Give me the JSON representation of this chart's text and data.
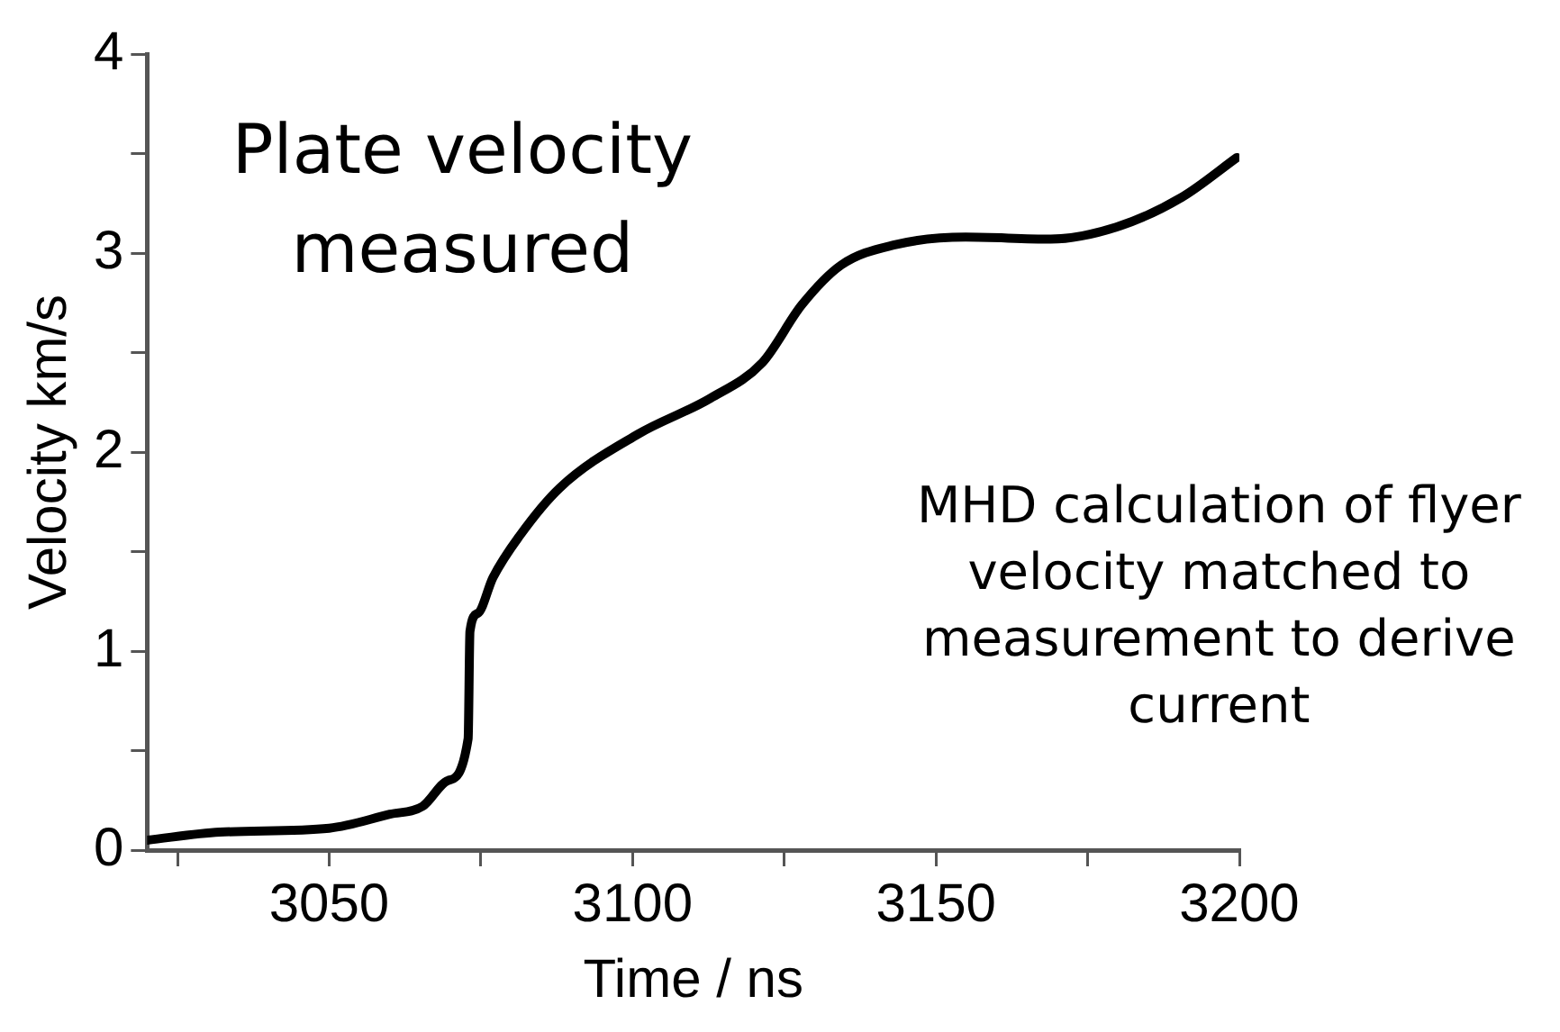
{
  "chart_data": {
    "type": "line",
    "xlabel": "Time / ns",
    "ylabel": "Velocity km/s",
    "x": [
      3020,
      3032,
      3050,
      3060,
      3065.4,
      3069.6,
      3072.9,
      3073.2,
      3074.5,
      3077,
      3081.4,
      3088,
      3100.9,
      3112.8,
      3121.4,
      3127.9,
      3134.4,
      3143,
      3154.9,
      3168.9,
      3179.7,
      3190.5,
      3199.6
    ],
    "series": [
      {
        "color": "#000000",
        "values": [
          0.05,
          0.09,
          0.11,
          0.18,
          0.22,
          0.35,
          0.56,
          1.1,
          1.19,
          1.37,
          1.58,
          1.82,
          2.09,
          2.27,
          2.45,
          2.74,
          2.94,
          3.04,
          3.08,
          3.07,
          3.13,
          3.28,
          3.48
        ]
      }
    ],
    "xlim": [
      3020,
      3200
    ],
    "xticks": [
      {
        "value": 3025,
        "label": null
      },
      3050,
      {
        "value": 3075,
        "label": null
      },
      3100,
      {
        "value": 3125,
        "label": null
      },
      3150,
      {
        "value": 3175,
        "label": null
      },
      3200
    ],
    "ylim": [
      0,
      4
    ],
    "yticks": [
      0,
      {
        "value": 0.5,
        "label": null
      },
      1,
      {
        "value": 1.5,
        "label": null
      },
      2,
      {
        "value": 2.5,
        "label": null
      },
      3,
      {
        "value": 3.5,
        "label": null
      },
      4
    ],
    "annotations": [
      "Plate velocity measured",
      "MHD calculation of flyer velocity matched to measurement to derive current"
    ],
    "grid": false,
    "legend": false,
    "marker": "none",
    "line_style": "solid"
  }
}
